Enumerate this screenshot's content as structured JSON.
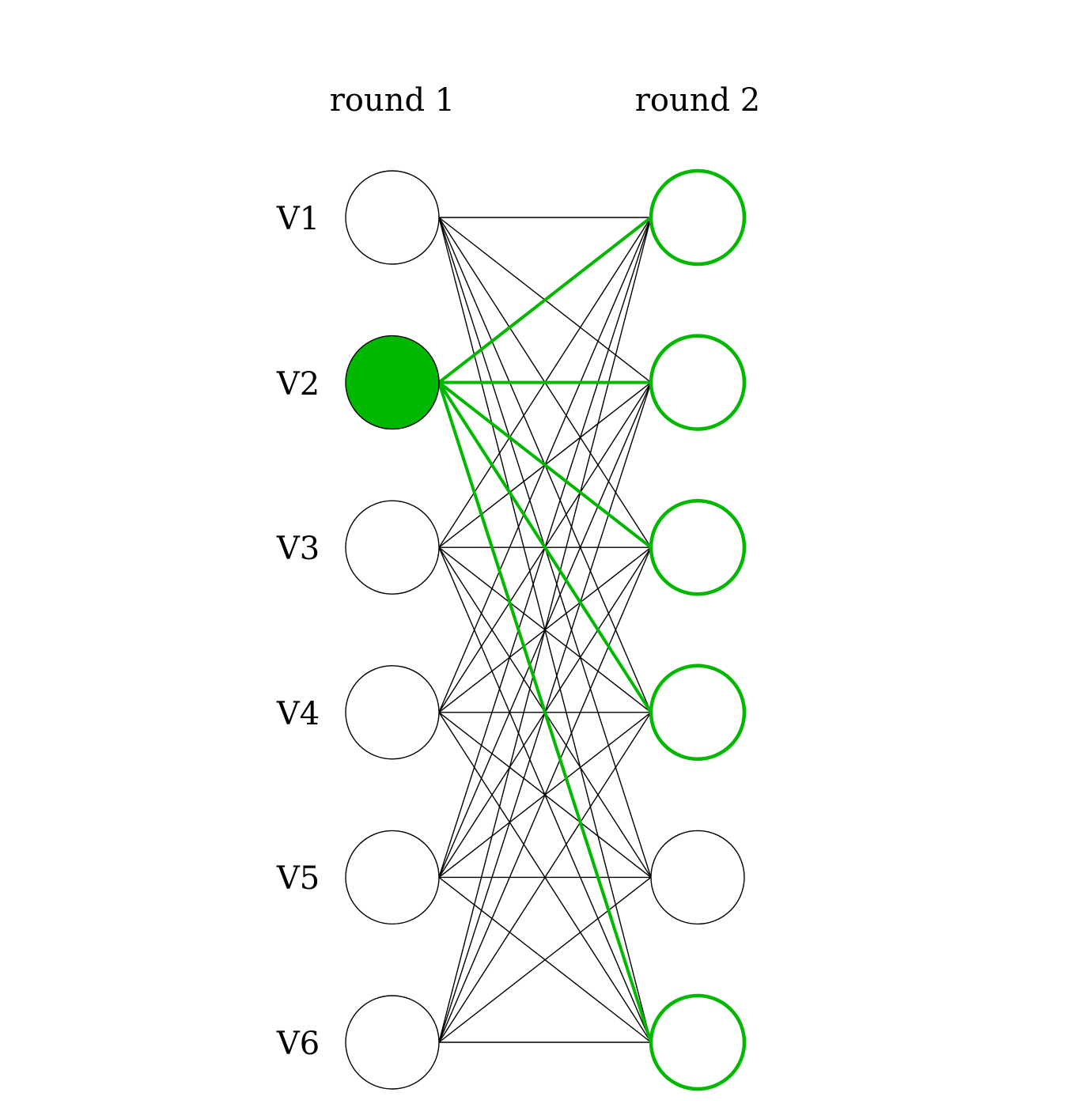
{
  "columns": [
    {
      "title": "round 1"
    },
    {
      "title": "round 2"
    }
  ],
  "rows": [
    "V1",
    "V2",
    "V3",
    "V4",
    "V5",
    "V6"
  ],
  "node_states": {
    "round1_highlighted": [
      "V2"
    ],
    "round2_highlighted": [
      "V1",
      "V2",
      "V3",
      "V4",
      "V6"
    ]
  },
  "edges": [
    [
      "V1",
      "V1"
    ],
    [
      "V1",
      "V2"
    ],
    [
      "V1",
      "V3"
    ],
    [
      "V1",
      "V4"
    ],
    [
      "V1",
      "V5"
    ],
    [
      "V1",
      "V6"
    ],
    [
      "V2",
      "V1"
    ],
    [
      "V2",
      "V2"
    ],
    [
      "V2",
      "V3"
    ],
    [
      "V2",
      "V4"
    ],
    [
      "V2",
      "V6"
    ],
    [
      "V3",
      "V1"
    ],
    [
      "V3",
      "V2"
    ],
    [
      "V3",
      "V3"
    ],
    [
      "V3",
      "V4"
    ],
    [
      "V3",
      "V5"
    ],
    [
      "V3",
      "V6"
    ],
    [
      "V4",
      "V1"
    ],
    [
      "V4",
      "V2"
    ],
    [
      "V4",
      "V3"
    ],
    [
      "V4",
      "V4"
    ],
    [
      "V4",
      "V5"
    ],
    [
      "V4",
      "V6"
    ],
    [
      "V5",
      "V1"
    ],
    [
      "V5",
      "V2"
    ],
    [
      "V5",
      "V3"
    ],
    [
      "V5",
      "V4"
    ],
    [
      "V5",
      "V5"
    ],
    [
      "V5",
      "V6"
    ],
    [
      "V6",
      "V1"
    ],
    [
      "V6",
      "V2"
    ],
    [
      "V6",
      "V3"
    ],
    [
      "V6",
      "V4"
    ],
    [
      "V6",
      "V5"
    ],
    [
      "V6",
      "V6"
    ]
  ],
  "highlighted_edges": [
    [
      "V2",
      "V1"
    ],
    [
      "V2",
      "V2"
    ],
    [
      "V2",
      "V3"
    ],
    [
      "V2",
      "V4"
    ],
    [
      "V2",
      "V6"
    ]
  ],
  "colors": {
    "highlight": "#00b800",
    "default_stroke": "#000000",
    "background": "#ffffff"
  }
}
